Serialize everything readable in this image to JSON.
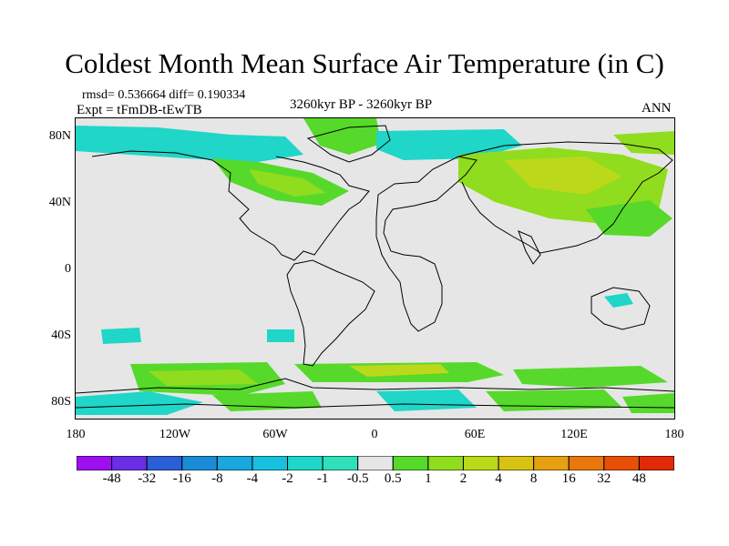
{
  "title": "Coldest Month Mean Surface Air Temperature (in C)",
  "stats": "rmsd= 0.536664  diff= 0.190334",
  "experiment": "Expt = tFmDB-tEwTB",
  "period": "3260kyr BP - 3260kyr BP",
  "season": "ANN",
  "lat_labels": [
    "80N",
    "40N",
    "0",
    "40S",
    "80S"
  ],
  "lon_labels": [
    "180",
    "120W",
    "60W",
    "0",
    "60E",
    "120E",
    "180"
  ],
  "colorbar": {
    "labels": [
      "-48",
      "-32",
      "-16",
      "-8",
      "-4",
      "-2",
      "-1",
      "-0.5",
      "0.5",
      "1",
      "2",
      "4",
      "8",
      "16",
      "32",
      "48"
    ],
    "colors": [
      "#9c0ff0",
      "#6a2ee6",
      "#2b5fd6",
      "#1b8bd8",
      "#18a8de",
      "#17c0dc",
      "#1fd6c8",
      "#30e0b8",
      "#e6e6e6",
      "#56d92a",
      "#90dc1e",
      "#bcd81a",
      "#d8c214",
      "#e6a010",
      "#e8780c",
      "#e85008",
      "#e02a08"
    ]
  }
}
